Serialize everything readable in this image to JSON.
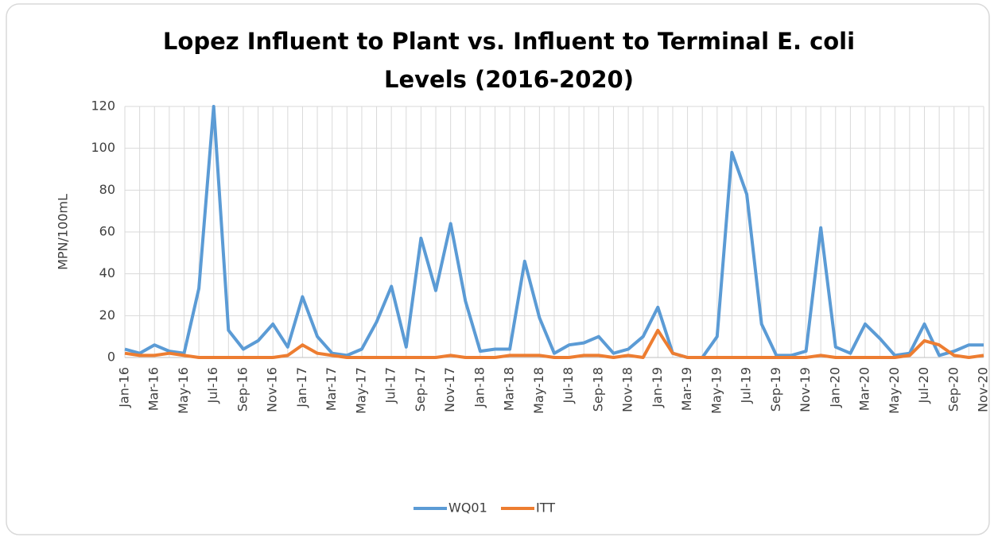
{
  "chart_data": {
    "type": "line",
    "title": [
      "Lopez Influent to Plant vs. Influent to Terminal E. coli",
      "Levels (2016-2020)"
    ],
    "y_label": "MPN/100mL",
    "categories": [
      "Jan-16",
      null,
      "Mar-16",
      null,
      "May-16",
      null,
      "Jul-16",
      null,
      "Sep-16",
      null,
      "Nov-16",
      null,
      "Jan-17",
      null,
      "Mar-17",
      null,
      "May-17",
      null,
      "Jul-17",
      null,
      "Sep-17",
      null,
      "Nov-17",
      null,
      "Jan-18",
      null,
      "Mar-18",
      null,
      "May-18",
      null,
      "Jul-18",
      null,
      "Sep-18",
      null,
      "Nov-18",
      null,
      "Jan-19",
      null,
      "Mar-19",
      null,
      "May-19",
      null,
      "Jul-19",
      null,
      "Sep-19",
      null,
      "Nov-19",
      null,
      "Jan-20",
      null,
      "Mar-20",
      null,
      "May-20",
      null,
      "Jul-20",
      null,
      "Sep-20",
      null,
      "Nov-20"
    ],
    "series": [
      {
        "name": "WQ01",
        "color": "#5b9bd5",
        "values": [
          4,
          2,
          6,
          3,
          2,
          33,
          120,
          13,
          4,
          8,
          16,
          5,
          29,
          10,
          2,
          1,
          4,
          17,
          34,
          5,
          57,
          32,
          64,
          27,
          3,
          4,
          4,
          46,
          19,
          2,
          6,
          7,
          10,
          2,
          4,
          10,
          24,
          2,
          0,
          0,
          10,
          98,
          78,
          16,
          1,
          1,
          3,
          62,
          5,
          2,
          16,
          9,
          1,
          2,
          16,
          1,
          3,
          6,
          6
        ]
      },
      {
        "name": "ITT",
        "color": "#ed7d31",
        "values": [
          2,
          1,
          1,
          2,
          1,
          0,
          0,
          0,
          0,
          0,
          0,
          1,
          6,
          2,
          1,
          0,
          0,
          0,
          0,
          0,
          0,
          0,
          1,
          0,
          0,
          0,
          1,
          1,
          1,
          0,
          0,
          1,
          1,
          0,
          1,
          0,
          13,
          2,
          0,
          0,
          0,
          0,
          0,
          0,
          0,
          0,
          0,
          1,
          0,
          0,
          0,
          0,
          0,
          1,
          8,
          6,
          1,
          0,
          1
        ]
      }
    ],
    "ylim": [
      0,
      120
    ],
    "yticks": [
      0,
      20,
      40,
      60,
      80,
      100,
      120
    ],
    "grid": true,
    "legend": "bottom"
  }
}
